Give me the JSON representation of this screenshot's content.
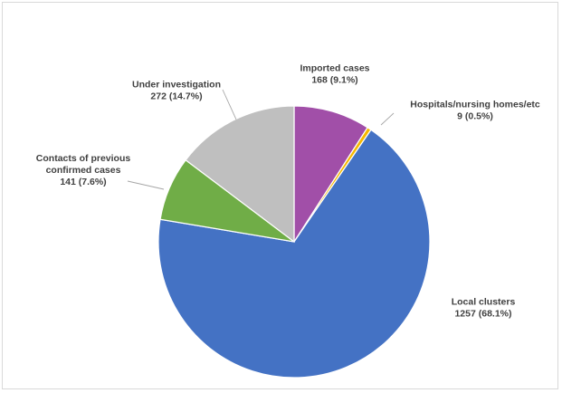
{
  "chart_data": {
    "type": "pie",
    "start_angle_deg": 0,
    "direction": "clockwise",
    "slices": [
      {
        "name": "Imported cases",
        "value": 168,
        "value_label": "168 (9.1%)",
        "color": "#A14FA8"
      },
      {
        "name": "Hospitals/nursing  homes/etc",
        "value": 9,
        "value_label": "9 (0.5%)",
        "color": "#F5B800"
      },
      {
        "name": "Local clusters",
        "value": 1257,
        "value_label": "1257 (68.1%)",
        "color": "#4472C4"
      },
      {
        "name": "Contacts of previous confirmed cases",
        "name_lines": [
          "Contacts of previous",
          "confirmed cases"
        ],
        "value": 141,
        "value_label": "141 (7.6%)",
        "color": "#70AD47"
      },
      {
        "name": "Under investigation",
        "value": 272,
        "value_label": "272 (14.7%)",
        "color": "#BFBFBF"
      }
    ]
  }
}
